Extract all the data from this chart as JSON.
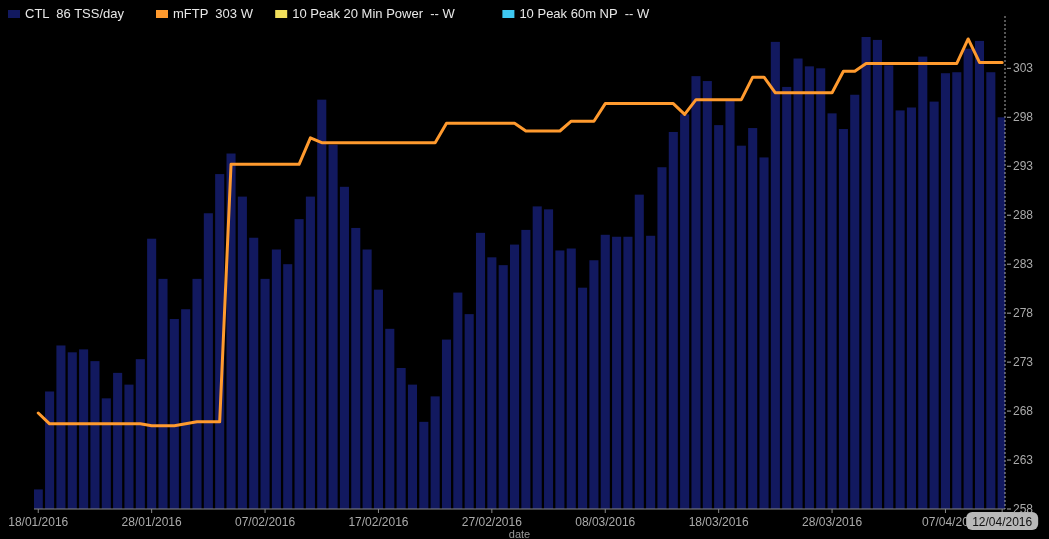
{
  "chart_data": {
    "type": "bar",
    "xlabel": "date",
    "legend": "top left",
    "grid": false,
    "x": [
      "2016-01-18",
      "2016-01-19",
      "2016-01-20",
      "2016-01-21",
      "2016-01-22",
      "2016-01-23",
      "2016-01-24",
      "2016-01-25",
      "2016-01-26",
      "2016-01-27",
      "2016-01-28",
      "2016-01-29",
      "2016-01-30",
      "2016-01-31",
      "2016-02-01",
      "2016-02-02",
      "2016-02-03",
      "2016-02-04",
      "2016-02-05",
      "2016-02-06",
      "2016-02-07",
      "2016-02-08",
      "2016-02-09",
      "2016-02-10",
      "2016-02-11",
      "2016-02-12",
      "2016-02-13",
      "2016-02-14",
      "2016-02-15",
      "2016-02-16",
      "2016-02-17",
      "2016-02-18",
      "2016-02-19",
      "2016-02-20",
      "2016-02-21",
      "2016-02-22",
      "2016-02-23",
      "2016-02-24",
      "2016-02-25",
      "2016-02-26",
      "2016-02-27",
      "2016-02-28",
      "2016-02-29",
      "2016-03-01",
      "2016-03-02",
      "2016-03-03",
      "2016-03-04",
      "2016-03-05",
      "2016-03-06",
      "2016-03-07",
      "2016-03-08",
      "2016-03-09",
      "2016-03-10",
      "2016-03-11",
      "2016-03-12",
      "2016-03-13",
      "2016-03-14",
      "2016-03-15",
      "2016-03-16",
      "2016-03-17",
      "2016-03-18",
      "2016-03-19",
      "2016-03-20",
      "2016-03-21",
      "2016-03-22",
      "2016-03-23",
      "2016-03-24",
      "2016-03-25",
      "2016-03-26",
      "2016-03-27",
      "2016-03-28",
      "2016-03-29",
      "2016-03-30",
      "2016-03-31",
      "2016-04-01",
      "2016-04-02",
      "2016-04-03",
      "2016-04-04",
      "2016-04-05",
      "2016-04-06",
      "2016-04-07",
      "2016-04-08",
      "2016-04-09",
      "2016-04-10",
      "2016-04-11",
      "2016-04-12"
    ],
    "xlim": [
      "2016-01-17T15:00",
      "2016-04-12T06:00"
    ],
    "xticks": [
      {
        "value": "2016-01-18",
        "label": "18/01/2016"
      },
      {
        "value": "2016-01-28",
        "label": "28/01/2016"
      },
      {
        "value": "2016-02-07",
        "label": "07/02/2016"
      },
      {
        "value": "2016-02-17",
        "label": "17/02/2016"
      },
      {
        "value": "2016-02-27",
        "label": "27/02/2016"
      },
      {
        "value": "2016-03-08",
        "label": "08/03/2016"
      },
      {
        "value": "2016-03-18",
        "label": "18/03/2016"
      },
      {
        "value": "2016-03-28",
        "label": "28/03/2016"
      },
      {
        "value": "2016-04-07",
        "label": "07/04/20"
      },
      {
        "value": "2016-04-12",
        "label": "12/04/2016"
      }
    ],
    "ylim": [
      258,
      306.3
    ],
    "yticks": [
      258,
      263,
      268,
      273,
      278,
      283,
      288,
      293,
      298,
      303
    ],
    "series": [
      {
        "name": "CTL  86 TSS/day",
        "color": "#12195f",
        "values": [
          260.0,
          270.0,
          274.7,
          274.0,
          274.3,
          273.1,
          269.3,
          271.9,
          270.7,
          273.3,
          285.6,
          281.5,
          277.4,
          278.4,
          281.5,
          288.2,
          292.2,
          294.3,
          289.9,
          285.7,
          281.5,
          284.5,
          283.0,
          287.6,
          289.9,
          299.8,
          295.2,
          290.9,
          286.7,
          284.5,
          280.4,
          276.4,
          272.4,
          270.7,
          266.9,
          269.5,
          275.3,
          280.1,
          277.9,
          286.2,
          283.7,
          282.9,
          285.0,
          286.5,
          288.9,
          288.6,
          284.4,
          284.6,
          280.6,
          283.4,
          286.0,
          285.8,
          285.8,
          290.1,
          285.9,
          292.9,
          296.5,
          298.3,
          302.2,
          301.7,
          297.2,
          299.7,
          295.1,
          296.9,
          293.9,
          305.7,
          301.1,
          304.0,
          303.2,
          303.0,
          298.4,
          296.8,
          300.3,
          306.2,
          305.9,
          303.3,
          298.7,
          299.0,
          304.2,
          299.6,
          302.5,
          302.6,
          305.0,
          305.8,
          302.6,
          298.0
        ]
      },
      {
        "name": "mFTP  303 W",
        "type": "line",
        "color": "#ff9a2e",
        "x": [
          "2016-01-18",
          "2016-01-19",
          "2016-01-27",
          "2016-01-28",
          "2016-01-30",
          "2016-02-01",
          "2016-02-03",
          "2016-02-04",
          "2016-02-10",
          "2016-02-11",
          "2016-02-12",
          "2016-02-22",
          "2016-02-23",
          "2016-02-29",
          "2016-03-01",
          "2016-03-04",
          "2016-03-05",
          "2016-03-07",
          "2016-03-08",
          "2016-03-14",
          "2016-03-15",
          "2016-03-16",
          "2016-03-20",
          "2016-03-21",
          "2016-03-22",
          "2016-03-23",
          "2016-03-28",
          "2016-03-29",
          "2016-03-30",
          "2016-03-31",
          "2016-04-08",
          "2016-04-09",
          "2016-04-10",
          "2016-04-12"
        ],
        "values": [
          267.8,
          266.7,
          266.7,
          266.5,
          266.5,
          266.9,
          266.9,
          293.2,
          293.2,
          295.9,
          295.4,
          295.4,
          297.4,
          297.4,
          296.6,
          296.6,
          297.6,
          297.6,
          299.4,
          299.4,
          298.3,
          299.8,
          299.8,
          302.1,
          302.1,
          300.5,
          300.5,
          302.7,
          302.7,
          303.5,
          303.5,
          306.0,
          303.6,
          303.6
        ]
      },
      {
        "name": "10 Peak 20 Min Power  -- W",
        "type": "line",
        "color": "#f2e05c",
        "values": [
          null,
          null,
          null,
          null,
          null,
          null,
          null,
          null,
          null,
          null,
          null,
          null,
          null,
          null,
          null,
          null,
          null,
          null,
          null,
          null,
          null,
          null,
          null,
          null,
          null,
          null,
          null,
          null,
          null,
          null,
          null,
          null,
          null,
          null,
          null,
          null,
          null,
          null,
          null,
          null,
          null,
          null,
          null,
          null,
          null,
          null,
          null,
          null,
          null,
          null,
          null,
          null,
          null,
          null,
          null,
          null,
          null,
          null,
          null,
          null,
          null,
          null,
          null,
          null,
          null,
          null,
          null,
          null,
          null,
          null,
          null,
          null,
          null,
          null,
          null,
          null,
          null,
          null,
          null,
          null,
          null,
          null,
          null,
          null,
          null,
          null
        ]
      },
      {
        "name": "10 Peak 60m NP  -- W",
        "type": "line",
        "color": "#3ec8f2",
        "values": [
          null,
          null,
          null,
          null,
          null,
          null,
          null,
          null,
          null,
          null,
          null,
          null,
          null,
          null,
          null,
          null,
          null,
          null,
          null,
          null,
          null,
          null,
          null,
          null,
          null,
          null,
          null,
          null,
          null,
          null,
          null,
          null,
          null,
          null,
          null,
          null,
          null,
          null,
          null,
          null,
          null,
          null,
          null,
          null,
          null,
          null,
          null,
          null,
          null,
          null,
          null,
          null,
          null,
          null,
          null,
          null,
          null,
          null,
          null,
          null,
          null,
          null,
          null,
          null,
          null,
          null,
          null,
          null,
          null,
          null,
          null,
          null,
          null,
          null,
          null,
          null,
          null,
          null,
          null,
          null,
          null,
          null,
          null,
          null,
          null,
          null
        ]
      }
    ]
  }
}
